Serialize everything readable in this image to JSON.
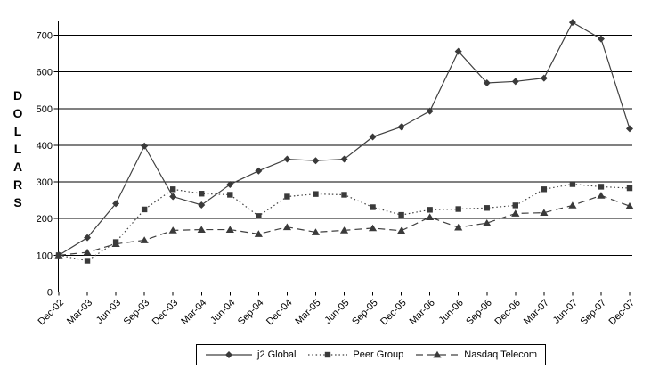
{
  "chart_data": {
    "type": "line",
    "title": "",
    "ylabel": "DOLLARS",
    "xlabel": "",
    "categories": [
      "Dec-02",
      "Mar-03",
      "Jun-03",
      "Sep-03",
      "Dec-03",
      "Mar-04",
      "Jun-04",
      "Sep-04",
      "Dec-04",
      "Mar-05",
      "Jun-05",
      "Sep-05",
      "Dec-05",
      "Mar-06",
      "Jun-06",
      "Sep-06",
      "Dec-06",
      "Mar-07",
      "Jun-07",
      "Sep-07",
      "Dec-07"
    ],
    "series": [
      {
        "name": "j2 Global",
        "marker": "diamond",
        "line": "solid",
        "values": [
          100,
          148,
          241,
          398,
          260,
          237,
          293,
          330,
          362,
          358,
          362,
          423,
          450,
          493,
          656,
          570,
          574,
          583,
          735,
          690,
          445
        ]
      },
      {
        "name": "Peer Group",
        "marker": "square",
        "line": "dotted",
        "values": [
          100,
          85,
          136,
          225,
          280,
          268,
          265,
          207,
          260,
          267,
          265,
          231,
          210,
          224,
          226,
          229,
          236,
          280,
          294,
          287,
          283
        ]
      },
      {
        "name": "Nasdaq Telecom",
        "marker": "triangle",
        "line": "dashed",
        "values": [
          100,
          108,
          131,
          141,
          168,
          170,
          170,
          158,
          177,
          163,
          168,
          174,
          167,
          204,
          176,
          188,
          214,
          216,
          236,
          263,
          234
        ]
      }
    ],
    "y_ticks": [
      0,
      100,
      200,
      300,
      400,
      500,
      600,
      700
    ],
    "ylim": [
      0,
      750
    ],
    "grid": "horizontal",
    "legend_position": "bottom-center",
    "colors": {
      "line": "#404040",
      "marker": "#3a3a3a",
      "grid": "#000000",
      "text": "#000000",
      "background": "#ffffff"
    }
  }
}
